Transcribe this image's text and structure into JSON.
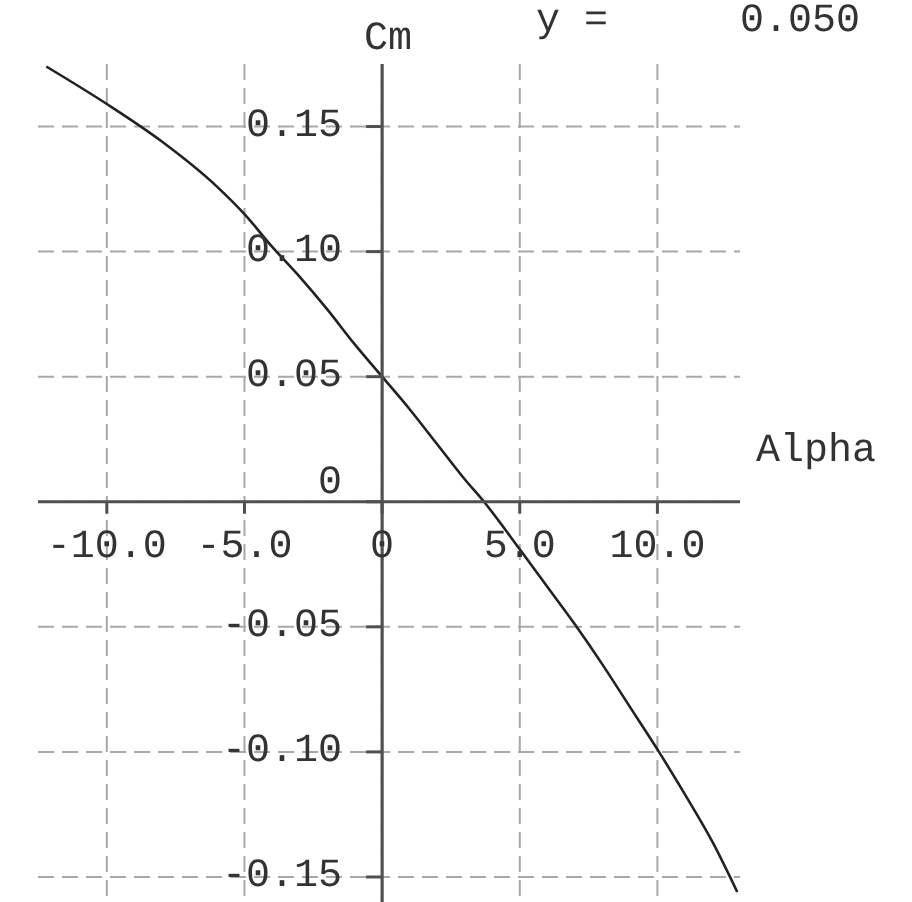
{
  "chart_data": {
    "type": "line",
    "xlabel": "Alpha",
    "ylabel": "Cm",
    "annotations": [
      "y =",
      "0.050"
    ],
    "x": [
      -12.2,
      -10,
      -8,
      -6,
      -5,
      -4,
      -3,
      -2,
      -1,
      0,
      1,
      2,
      3,
      3.7,
      5,
      6,
      7,
      8,
      9,
      10,
      11,
      12,
      12.9
    ],
    "series": [
      {
        "color": "#222222",
        "values": [
          0.174,
          0.159,
          0.144,
          0.126,
          0.115,
          0.102,
          0.09,
          0.077,
          0.063,
          0.05,
          0.037,
          0.023,
          0.009,
          0.0,
          -0.019,
          -0.034,
          -0.049,
          -0.065,
          -0.082,
          -0.099,
          -0.117,
          -0.136,
          -0.156
        ]
      }
    ],
    "xlim": [
      -12.5,
      13
    ],
    "ylim": [
      -0.16,
      0.175
    ],
    "xticks": [
      {
        "value": -10,
        "label": "-10.0"
      },
      {
        "value": -5,
        "label": "-5.0"
      },
      0,
      {
        "value": 5,
        "label": "5.0"
      },
      {
        "value": 10,
        "label": "10.0"
      }
    ],
    "yticks": [
      0.15,
      {
        "value": 0.1,
        "label": "0.10"
      },
      0.05,
      0,
      -0.05,
      {
        "value": -0.1,
        "label": "-0.10"
      },
      -0.15
    ],
    "grid": true
  }
}
